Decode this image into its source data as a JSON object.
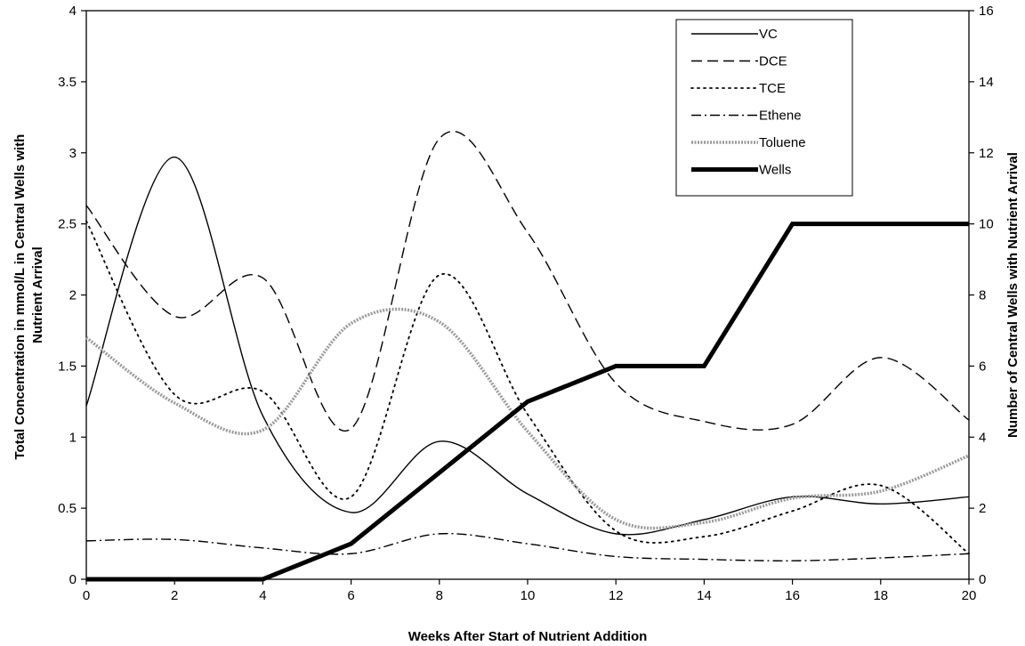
{
  "chart_data": {
    "type": "line",
    "xlabel": "Weeks After Start of Nutrient Addition",
    "ylabel_left": [
      "Total Concentration in mmol/L in Central Wells with",
      "Nutrient Arrival"
    ],
    "ylabel_right": "Number of Central Wells with Nutrient Arrival",
    "xlim": [
      0,
      20
    ],
    "ylim_left": [
      0,
      4
    ],
    "ylim_right": [
      0,
      16
    ],
    "x_ticks": [
      "0",
      "2",
      "4",
      "6",
      "8",
      "10",
      "12",
      "14",
      "16",
      "18",
      "20"
    ],
    "y_left_ticks": [
      "0",
      "0.5",
      "1",
      "1.5",
      "2",
      "2.5",
      "3",
      "3.5",
      "4"
    ],
    "y_right_ticks": [
      "0",
      "2",
      "4",
      "6",
      "8",
      "10",
      "12",
      "14",
      "16"
    ],
    "grid": false,
    "legend_position": "top-right",
    "series": [
      {
        "name": "VC",
        "axis": "left",
        "smooth": true,
        "style": "solid",
        "x": [
          0,
          2,
          4,
          6,
          8,
          10,
          12,
          14,
          16,
          18,
          20
        ],
        "y": [
          1.22,
          2.97,
          1.15,
          0.47,
          0.97,
          0.6,
          0.32,
          0.42,
          0.58,
          0.53,
          0.58
        ]
      },
      {
        "name": "DCE",
        "axis": "left",
        "smooth": true,
        "style": "dash",
        "x": [
          0,
          2,
          4,
          6,
          8,
          10,
          12,
          14,
          16,
          18,
          20
        ],
        "y": [
          2.63,
          1.85,
          2.12,
          1.06,
          3.1,
          2.44,
          1.38,
          1.11,
          1.09,
          1.56,
          1.12
        ]
      },
      {
        "name": "TCE",
        "axis": "left",
        "smooth": true,
        "style": "dot",
        "x": [
          0,
          2,
          4,
          6,
          8,
          10,
          12,
          14,
          16,
          18,
          20
        ],
        "y": [
          2.52,
          1.3,
          1.32,
          0.58,
          2.14,
          1.16,
          0.34,
          0.3,
          0.48,
          0.66,
          0.18
        ]
      },
      {
        "name": "Ethene",
        "axis": "left",
        "smooth": true,
        "style": "dashdot",
        "x": [
          0,
          2,
          4,
          6,
          8,
          10,
          12,
          14,
          16,
          18,
          20
        ],
        "y": [
          0.27,
          0.28,
          0.22,
          0.18,
          0.32,
          0.25,
          0.16,
          0.14,
          0.13,
          0.15,
          0.18
        ]
      },
      {
        "name": "Toluene",
        "axis": "left",
        "smooth": true,
        "style": "gray",
        "x": [
          0,
          2,
          4,
          6,
          8,
          10,
          12,
          14,
          16,
          18,
          20
        ],
        "y": [
          1.7,
          1.24,
          1.05,
          1.8,
          1.81,
          1.04,
          0.42,
          0.4,
          0.57,
          0.62,
          0.87
        ]
      },
      {
        "name": "Wells",
        "axis": "right",
        "smooth": false,
        "style": "thick",
        "x": [
          0,
          2,
          4,
          6,
          8,
          10,
          12,
          14,
          16,
          18,
          20
        ],
        "y": [
          0,
          0,
          0,
          1,
          3,
          5,
          6,
          6,
          10,
          10,
          10
        ]
      }
    ]
  }
}
